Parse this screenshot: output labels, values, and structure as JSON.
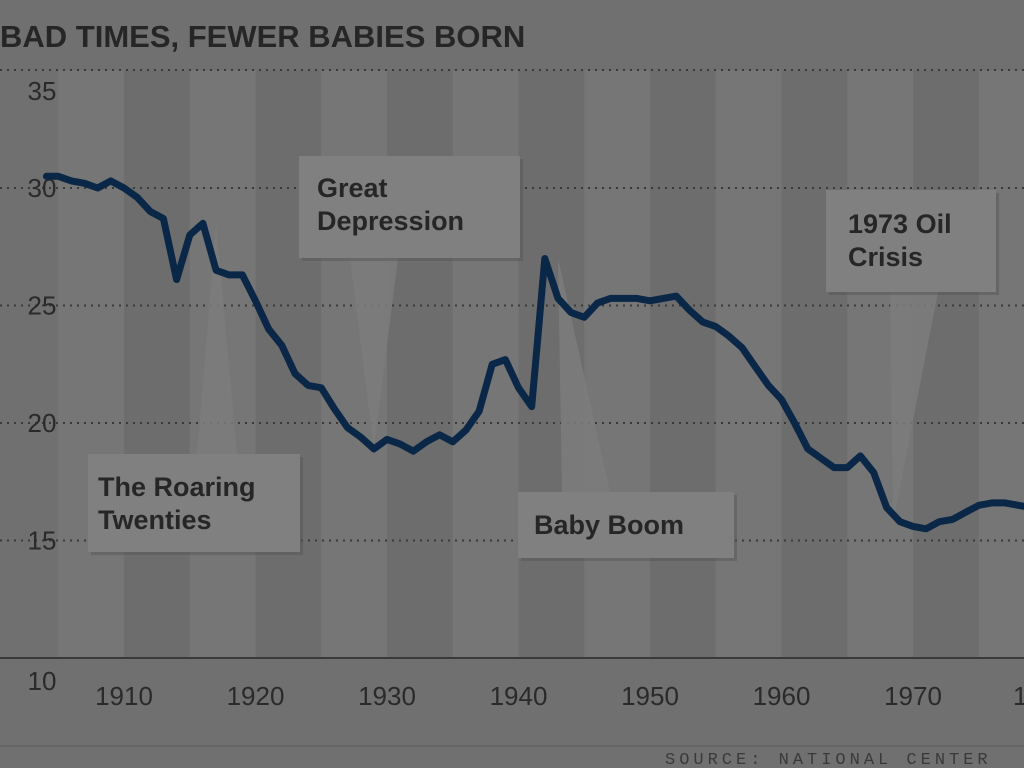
{
  "chart_data": {
    "type": "line",
    "title": "BAD TIMES, FEWER BABIES BORN",
    "xlabel": "",
    "ylabel": "",
    "source": "SOURCE: NATIONAL CENTER",
    "xlim": [
      1904,
      1980
    ],
    "ylim": [
      10,
      35
    ],
    "x_ticks": [
      1910,
      1920,
      1930,
      1940,
      1950,
      1960,
      1970,
      "1"
    ],
    "y_ticks": [
      35,
      30,
      25,
      20,
      15,
      10
    ],
    "grid": true,
    "line_color": "#0b2747",
    "series": [
      {
        "x": [
          1904.1,
          1905,
          1906,
          1907,
          1908,
          1909,
          1910,
          1911,
          1912,
          1913,
          1914,
          1915,
          1916,
          1917,
          1918,
          1919,
          1920,
          1921,
          1922,
          1923,
          1924,
          1925,
          1926,
          1927,
          1928,
          1929,
          1930,
          1931,
          1932,
          1933,
          1934,
          1935,
          1936,
          1937,
          1938,
          1939,
          1940,
          1941,
          1942,
          1943,
          1944,
          1945,
          1946,
          1947,
          1948,
          1949,
          1950,
          1951,
          1952,
          1953,
          1954,
          1955,
          1956,
          1957,
          1958,
          1959,
          1960,
          1961,
          1962,
          1963,
          1964,
          1965,
          1966,
          1967,
          1968,
          1969,
          1970,
          1971,
          1972,
          1973,
          1974,
          1975,
          1976,
          1977,
          1978,
          1979,
          1980
        ],
        "values": [
          30.5,
          30.5,
          30.3,
          30.2,
          30.0,
          30.3,
          30.0,
          29.6,
          29.0,
          28.7,
          26.1,
          28.0,
          28.5,
          26.5,
          26.3,
          26.3,
          25.2,
          24.0,
          23.3,
          22.1,
          21.6,
          21.5,
          20.6,
          19.8,
          19.4,
          18.9,
          19.3,
          19.1,
          18.8,
          19.2,
          19.5,
          19.2,
          19.7,
          20.5,
          22.5,
          22.7,
          21.5,
          20.7,
          27.0,
          25.3,
          24.7,
          24.5,
          25.1,
          25.3,
          25.3,
          25.3,
          25.2,
          25.3,
          25.4,
          24.8,
          24.3,
          24.1,
          23.7,
          23.2,
          22.4,
          21.6,
          21.0,
          20.0,
          18.9,
          18.5,
          18.1,
          18.1,
          18.6,
          17.9,
          16.4,
          15.8,
          15.6,
          15.5,
          15.8,
          15.9,
          16.2,
          16.5,
          16.6,
          16.6,
          16.5,
          16.4,
          16.3
        ]
      }
    ],
    "annotations": [
      {
        "lines": [
          "The Roaring",
          "Twenties"
        ],
        "x": 1917,
        "y": 28.5
      },
      {
        "lines": [
          "Great",
          "Depression"
        ],
        "x": 1929,
        "y": 18.9
      },
      {
        "lines": [
          "Baby Boom"
        ],
        "x": 1943,
        "y": 27.0
      },
      {
        "lines": [
          "1973 Oil",
          "Crisis"
        ],
        "x": 1968.5,
        "y": 15.8
      }
    ]
  }
}
